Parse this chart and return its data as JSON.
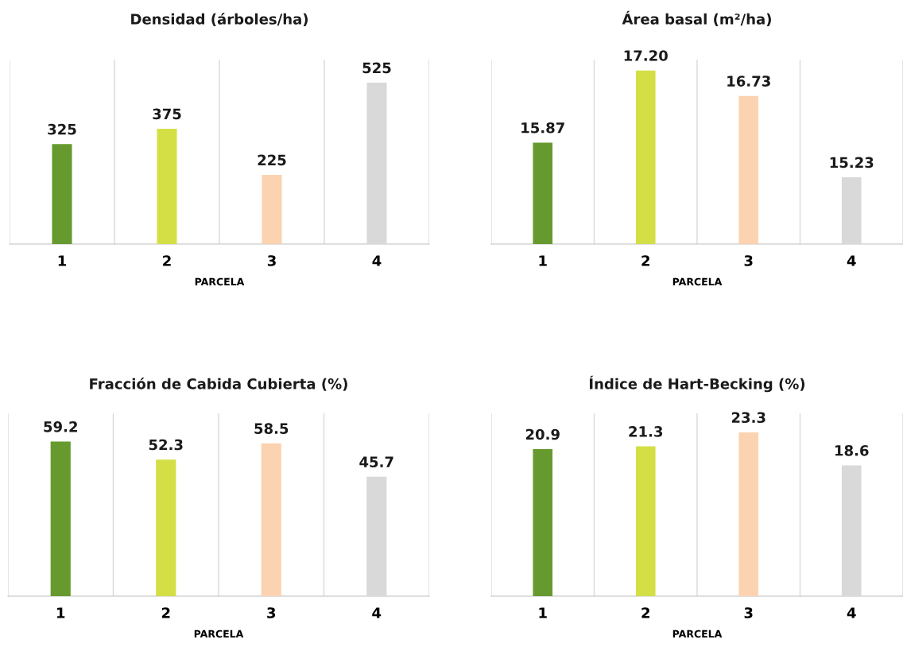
{
  "chart_data": [
    {
      "type": "bar",
      "title": "Densidad (árboles/ha)",
      "xlabel": "PARCELA",
      "categories": [
        "1",
        "2",
        "3",
        "4"
      ],
      "values": [
        325,
        375,
        225,
        525
      ],
      "colors": [
        "#669a2e",
        "#d4df45",
        "#fbd3b0",
        "#d9d9d9"
      ],
      "ylim": [
        0,
        600
      ],
      "data_labels": true,
      "grid": "x",
      "tick_labels": "x"
    },
    {
      "type": "bar",
      "title": "Área basal (m²/ha)",
      "xlabel": "PARCELA",
      "categories": [
        "1",
        "2",
        "3",
        "4"
      ],
      "values": [
        15.87,
        17.2,
        16.73,
        15.23
      ],
      "value_labels": [
        "15.87",
        "17.20",
        "16.73",
        "15.23"
      ],
      "colors": [
        "#669a2e",
        "#d4df45",
        "#fbd3b0",
        "#d9d9d9"
      ],
      "ylim": [
        14,
        17.4
      ],
      "grid": "x",
      "tick_labels": "x"
    },
    {
      "type": "bar",
      "title": "Fracción de Cabida Cubierta (%)",
      "xlabel": "PARCELA",
      "categories": [
        "1",
        "2",
        "3",
        "4"
      ],
      "values": [
        59.2,
        52.3,
        58.5,
        45.7
      ],
      "colors": [
        "#669a2e",
        "#d4df45",
        "#fbd3b0",
        "#d9d9d9"
      ],
      "ylim": [
        0,
        70
      ],
      "data_labels": true,
      "grid": "x",
      "tick_labels": "x"
    },
    {
      "type": "bar",
      "title": "Índice de Hart-Becking (%)",
      "xlabel": "PARCELA",
      "categories": [
        "1",
        "2",
        "3",
        "4"
      ],
      "values": [
        20.9,
        21.3,
        23.3,
        18.6
      ],
      "colors": [
        "#669a2e",
        "#d4df45",
        "#fbd3b0",
        "#d9d9d9"
      ],
      "ylim": [
        0,
        26
      ],
      "data_labels": true,
      "grid": "x",
      "tick_labels": "x"
    }
  ]
}
